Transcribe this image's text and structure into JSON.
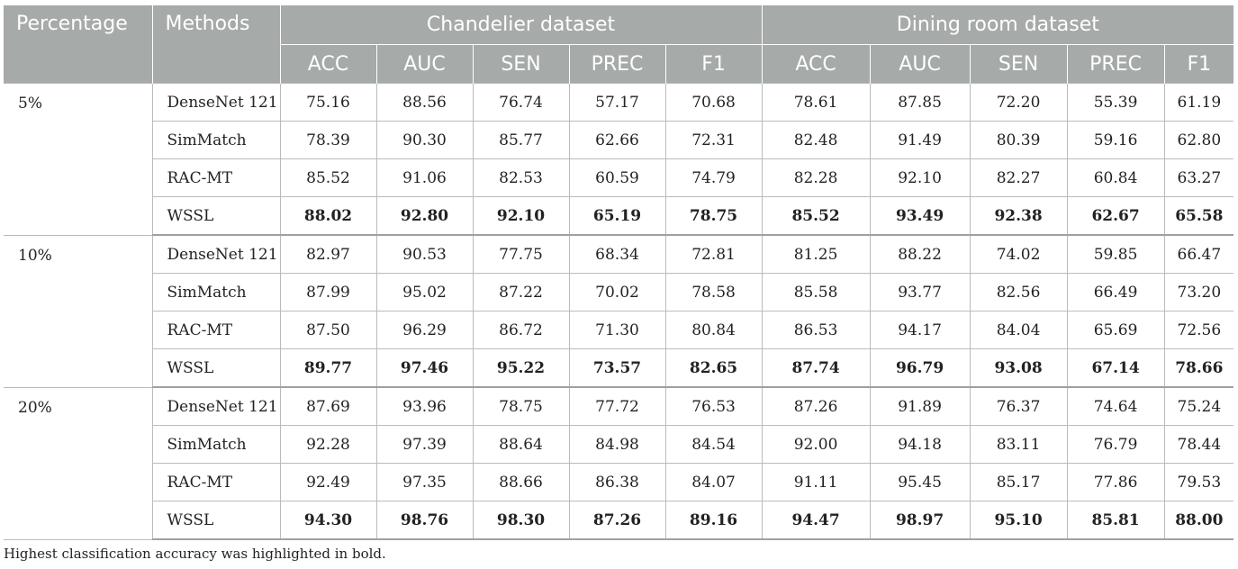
{
  "chart_data": {
    "type": "table",
    "header": {
      "percentage": "Percentage",
      "methods": "Methods",
      "datasets": [
        "Chandelier dataset",
        "Dining room dataset"
      ],
      "metrics": [
        "ACC",
        "AUC",
        "SEN",
        "PREC",
        "F1",
        "ACC",
        "AUC",
        "SEN",
        "PREC",
        "F1"
      ]
    },
    "groups": [
      {
        "percentage": "5%",
        "rows": [
          {
            "method": "DenseNet 121",
            "values": [
              "75.16",
              "88.56",
              "76.74",
              "57.17",
              "70.68",
              "78.61",
              "87.85",
              "72.20",
              "55.39",
              "61.19"
            ],
            "bold": false
          },
          {
            "method": "SimMatch",
            "values": [
              "78.39",
              "90.30",
              "85.77",
              "62.66",
              "72.31",
              "82.48",
              "91.49",
              "80.39",
              "59.16",
              "62.80"
            ],
            "bold": false
          },
          {
            "method": "RAC-MT",
            "values": [
              "85.52",
              "91.06",
              "82.53",
              "60.59",
              "74.79",
              "82.28",
              "92.10",
              "82.27",
              "60.84",
              "63.27"
            ],
            "bold": false
          },
          {
            "method": "WSSL",
            "values": [
              "88.02",
              "92.80",
              "92.10",
              "65.19",
              "78.75",
              "85.52",
              "93.49",
              "92.38",
              "62.67",
              "65.58"
            ],
            "bold": true
          }
        ]
      },
      {
        "percentage": "10%",
        "rows": [
          {
            "method": "DenseNet 121",
            "values": [
              "82.97",
              "90.53",
              "77.75",
              "68.34",
              "72.81",
              "81.25",
              "88.22",
              "74.02",
              "59.85",
              "66.47"
            ],
            "bold": false
          },
          {
            "method": "SimMatch",
            "values": [
              "87.99",
              "95.02",
              "87.22",
              "70.02",
              "78.58",
              "85.58",
              "93.77",
              "82.56",
              "66.49",
              "73.20"
            ],
            "bold": false
          },
          {
            "method": "RAC-MT",
            "values": [
              "87.50",
              "96.29",
              "86.72",
              "71.30",
              "80.84",
              "86.53",
              "94.17",
              "84.04",
              "65.69",
              "72.56"
            ],
            "bold": false
          },
          {
            "method": "WSSL",
            "values": [
              "89.77",
              "97.46",
              "95.22",
              "73.57",
              "82.65",
              "87.74",
              "96.79",
              "93.08",
              "67.14",
              "78.66"
            ],
            "bold": true
          }
        ]
      },
      {
        "percentage": "20%",
        "rows": [
          {
            "method": "DenseNet 121",
            "values": [
              "87.69",
              "93.96",
              "78.75",
              "77.72",
              "76.53",
              "87.26",
              "91.89",
              "76.37",
              "74.64",
              "75.24"
            ],
            "bold": false
          },
          {
            "method": "SimMatch",
            "values": [
              "92.28",
              "97.39",
              "88.64",
              "84.98",
              "84.54",
              "92.00",
              "94.18",
              "83.11",
              "76.79",
              "78.44"
            ],
            "bold": false
          },
          {
            "method": "RAC-MT",
            "values": [
              "92.49",
              "97.35",
              "88.66",
              "86.38",
              "84.07",
              "91.11",
              "95.45",
              "85.17",
              "77.86",
              "79.53"
            ],
            "bold": false
          },
          {
            "method": "WSSL",
            "values": [
              "94.30",
              "98.76",
              "98.30",
              "87.26",
              "89.16",
              "94.47",
              "98.97",
              "95.10",
              "85.81",
              "88.00"
            ],
            "bold": true
          }
        ]
      }
    ],
    "footnote": "Highest classification accuracy was highlighted in bold."
  },
  "colors": {
    "header_bg": "#a6aaa9",
    "header_text": "#ffffff",
    "border": "#b9bcbb"
  }
}
